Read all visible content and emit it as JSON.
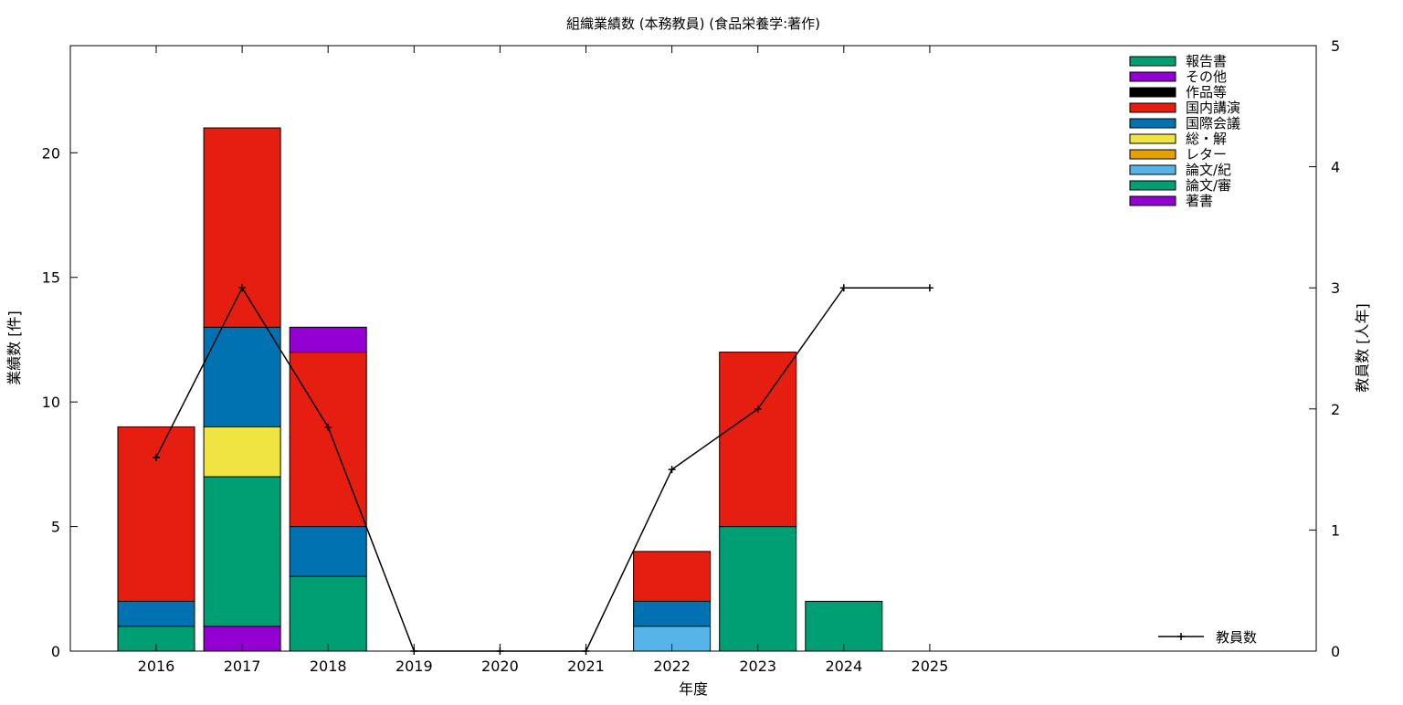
{
  "chart_data": {
    "type": "bar",
    "title": "組織業績数 (本務教員) (食品栄養学:著作)",
    "xlabel": "年度",
    "ylabel": "業績数 [件]",
    "y2label": "教員数 [人年]",
    "categories": [
      "2016",
      "2017",
      "2018",
      "2019",
      "2020",
      "2021",
      "2022",
      "2023",
      "2024",
      "2025"
    ],
    "ylim": [
      0,
      24.3
    ],
    "yticks": [
      0,
      5,
      10,
      15,
      20
    ],
    "y2lim": [
      0,
      5
    ],
    "y2ticks": [
      0,
      1,
      2,
      3,
      4,
      5
    ],
    "stacked": true,
    "grid": false,
    "legend_position": "top-right",
    "series": [
      {
        "name": "著書",
        "color": "#9400d3",
        "values": [
          0,
          1,
          0,
          0,
          0,
          0,
          0,
          0,
          0,
          0
        ]
      },
      {
        "name": "論文/審",
        "color": "#009e73",
        "values": [
          1,
          6,
          3,
          0,
          0,
          0,
          0,
          5,
          2,
          0
        ]
      },
      {
        "name": "論文/紀",
        "color": "#56b4e9",
        "values": [
          0,
          0,
          0,
          0,
          0,
          0,
          1,
          0,
          0,
          0
        ]
      },
      {
        "name": "レター",
        "color": "#e69f00",
        "values": [
          0,
          0,
          0,
          0,
          0,
          0,
          0,
          0,
          0,
          0
        ]
      },
      {
        "name": "総・解",
        "color": "#f0e442",
        "values": [
          0,
          2,
          0,
          0,
          0,
          0,
          0,
          0,
          0,
          0
        ]
      },
      {
        "name": "国際会議",
        "color": "#0072b2",
        "values": [
          1,
          4,
          2,
          0,
          0,
          0,
          1,
          0,
          0,
          0
        ]
      },
      {
        "name": "国内講演",
        "color": "#e51e10",
        "values": [
          7,
          8,
          7,
          0,
          0,
          0,
          2,
          7,
          0,
          0
        ]
      },
      {
        "name": "作品等",
        "color": "#000000",
        "values": [
          0,
          0,
          0,
          0,
          0,
          0,
          0,
          0,
          0,
          0
        ]
      },
      {
        "name": "その他",
        "color": "#9400d3",
        "values": [
          0,
          0,
          1,
          0,
          0,
          0,
          0,
          0,
          0,
          0
        ]
      },
      {
        "name": "報告書",
        "color": "#009e73",
        "values": [
          0,
          0,
          0,
          0,
          0,
          0,
          0,
          0,
          0,
          0
        ]
      }
    ],
    "line_series": {
      "name": "教員数",
      "color": "#000000",
      "axis": "y2",
      "values": [
        1.6,
        3.0,
        1.85,
        0,
        0,
        0,
        1.5,
        2.0,
        3.0,
        3.0
      ]
    }
  }
}
